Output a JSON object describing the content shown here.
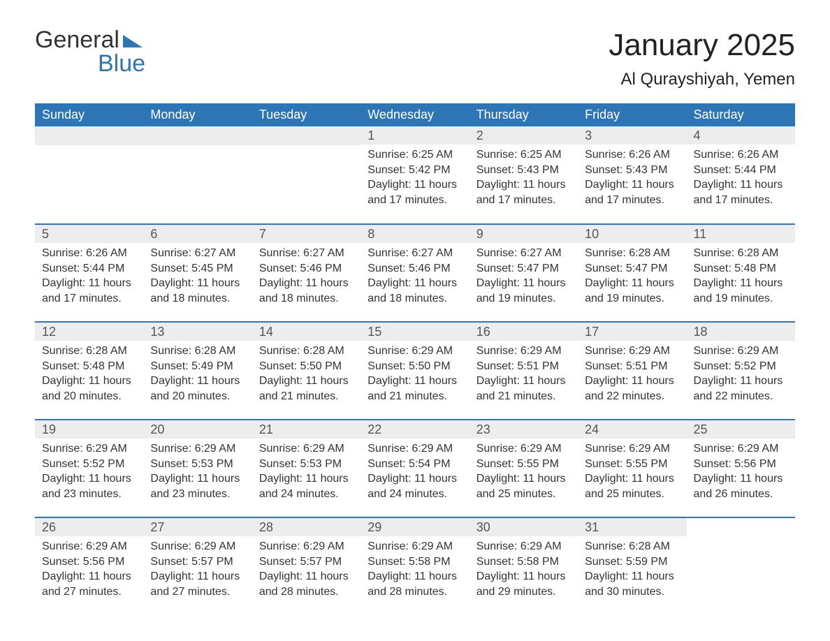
{
  "brand": {
    "name1": "General",
    "name2": "Blue"
  },
  "colors": {
    "brand_blue": "#2e75b6",
    "header_row_bg": "#2e75b6",
    "header_row_fg": "#ffffff",
    "daynum_bg": "#ededed",
    "daynum_fg": "#555555",
    "body_fg": "#333333",
    "rule": "#2e75b6",
    "page_bg": "#ffffff"
  },
  "typography": {
    "font_family": "Arial, Helvetica, sans-serif",
    "title_fontsize": 44,
    "subtitle_fontsize": 24,
    "weekday_fontsize": 18,
    "daynum_fontsize": 18,
    "body_fontsize": 16
  },
  "title": "January 2025",
  "subtitle": "Al Qurayshiyah, Yemen",
  "weekdays": [
    "Sunday",
    "Monday",
    "Tuesday",
    "Wednesday",
    "Thursday",
    "Friday",
    "Saturday"
  ],
  "leading_blanks": 3,
  "days": [
    {
      "n": 1,
      "sunrise": "6:25 AM",
      "sunset": "5:42 PM",
      "daylight": "11 hours and 17 minutes."
    },
    {
      "n": 2,
      "sunrise": "6:25 AM",
      "sunset": "5:43 PM",
      "daylight": "11 hours and 17 minutes."
    },
    {
      "n": 3,
      "sunrise": "6:26 AM",
      "sunset": "5:43 PM",
      "daylight": "11 hours and 17 minutes."
    },
    {
      "n": 4,
      "sunrise": "6:26 AM",
      "sunset": "5:44 PM",
      "daylight": "11 hours and 17 minutes."
    },
    {
      "n": 5,
      "sunrise": "6:26 AM",
      "sunset": "5:44 PM",
      "daylight": "11 hours and 17 minutes."
    },
    {
      "n": 6,
      "sunrise": "6:27 AM",
      "sunset": "5:45 PM",
      "daylight": "11 hours and 18 minutes."
    },
    {
      "n": 7,
      "sunrise": "6:27 AM",
      "sunset": "5:46 PM",
      "daylight": "11 hours and 18 minutes."
    },
    {
      "n": 8,
      "sunrise": "6:27 AM",
      "sunset": "5:46 PM",
      "daylight": "11 hours and 18 minutes."
    },
    {
      "n": 9,
      "sunrise": "6:27 AM",
      "sunset": "5:47 PM",
      "daylight": "11 hours and 19 minutes."
    },
    {
      "n": 10,
      "sunrise": "6:28 AM",
      "sunset": "5:47 PM",
      "daylight": "11 hours and 19 minutes."
    },
    {
      "n": 11,
      "sunrise": "6:28 AM",
      "sunset": "5:48 PM",
      "daylight": "11 hours and 19 minutes."
    },
    {
      "n": 12,
      "sunrise": "6:28 AM",
      "sunset": "5:48 PM",
      "daylight": "11 hours and 20 minutes."
    },
    {
      "n": 13,
      "sunrise": "6:28 AM",
      "sunset": "5:49 PM",
      "daylight": "11 hours and 20 minutes."
    },
    {
      "n": 14,
      "sunrise": "6:28 AM",
      "sunset": "5:50 PM",
      "daylight": "11 hours and 21 minutes."
    },
    {
      "n": 15,
      "sunrise": "6:29 AM",
      "sunset": "5:50 PM",
      "daylight": "11 hours and 21 minutes."
    },
    {
      "n": 16,
      "sunrise": "6:29 AM",
      "sunset": "5:51 PM",
      "daylight": "11 hours and 21 minutes."
    },
    {
      "n": 17,
      "sunrise": "6:29 AM",
      "sunset": "5:51 PM",
      "daylight": "11 hours and 22 minutes."
    },
    {
      "n": 18,
      "sunrise": "6:29 AM",
      "sunset": "5:52 PM",
      "daylight": "11 hours and 22 minutes."
    },
    {
      "n": 19,
      "sunrise": "6:29 AM",
      "sunset": "5:52 PM",
      "daylight": "11 hours and 23 minutes."
    },
    {
      "n": 20,
      "sunrise": "6:29 AM",
      "sunset": "5:53 PM",
      "daylight": "11 hours and 23 minutes."
    },
    {
      "n": 21,
      "sunrise": "6:29 AM",
      "sunset": "5:53 PM",
      "daylight": "11 hours and 24 minutes."
    },
    {
      "n": 22,
      "sunrise": "6:29 AM",
      "sunset": "5:54 PM",
      "daylight": "11 hours and 24 minutes."
    },
    {
      "n": 23,
      "sunrise": "6:29 AM",
      "sunset": "5:55 PM",
      "daylight": "11 hours and 25 minutes."
    },
    {
      "n": 24,
      "sunrise": "6:29 AM",
      "sunset": "5:55 PM",
      "daylight": "11 hours and 25 minutes."
    },
    {
      "n": 25,
      "sunrise": "6:29 AM",
      "sunset": "5:56 PM",
      "daylight": "11 hours and 26 minutes."
    },
    {
      "n": 26,
      "sunrise": "6:29 AM",
      "sunset": "5:56 PM",
      "daylight": "11 hours and 27 minutes."
    },
    {
      "n": 27,
      "sunrise": "6:29 AM",
      "sunset": "5:57 PM",
      "daylight": "11 hours and 27 minutes."
    },
    {
      "n": 28,
      "sunrise": "6:29 AM",
      "sunset": "5:57 PM",
      "daylight": "11 hours and 28 minutes."
    },
    {
      "n": 29,
      "sunrise": "6:29 AM",
      "sunset": "5:58 PM",
      "daylight": "11 hours and 28 minutes."
    },
    {
      "n": 30,
      "sunrise": "6:29 AM",
      "sunset": "5:58 PM",
      "daylight": "11 hours and 29 minutes."
    },
    {
      "n": 31,
      "sunrise": "6:28 AM",
      "sunset": "5:59 PM",
      "daylight": "11 hours and 30 minutes."
    }
  ],
  "labels": {
    "sunrise": "Sunrise:",
    "sunset": "Sunset:",
    "daylight": "Daylight:"
  }
}
